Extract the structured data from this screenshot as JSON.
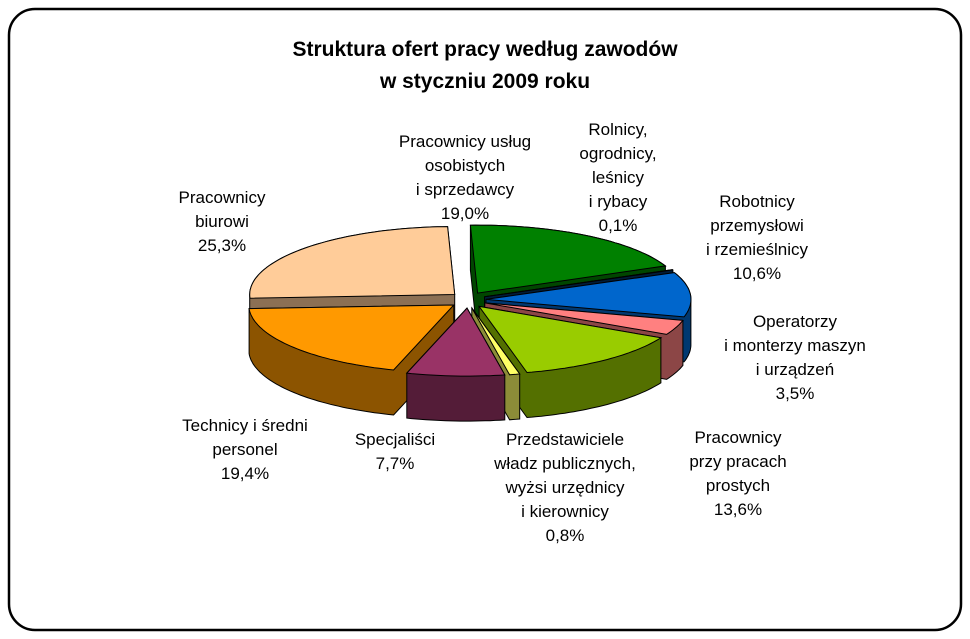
{
  "chart_data": {
    "type": "pie3d",
    "title": "Struktura ofert pracy według zawodów\nw styczniu 2009 roku",
    "categories": [
      "Pracownicy usług\nosobistych\ni sprzedawcy",
      "Rolnicy,\nogrodnicy,\nleśnicy\ni rybacy",
      "Robotnicy\nprzemysłowi\ni rzemieślnicy",
      "Operatorzy\ni monterzy maszyn\ni urządzeń",
      "Pracownicy\nprzy pracach\nprostych",
      "Przedstawiciele\nwładz publicznych,\nwyżsi urzędnicy\ni kierownicy",
      "Specjaliści",
      "Technicy i średni\npersonel",
      "Pracownicy\nbiurowi"
    ],
    "values": [
      19.0,
      0.1,
      10.6,
      3.5,
      13.6,
      0.8,
      7.7,
      19.4,
      25.3
    ],
    "value_labels": [
      "19,0%",
      "0,1%",
      "10,6%",
      "3,5%",
      "13,6%",
      "0,8%",
      "7,7%",
      "19,4%",
      "25,3%"
    ],
    "colors": [
      "#008000",
      "#003366",
      "#0066cc",
      "#ff8080",
      "#99cc00",
      "#ffff66",
      "#993366",
      "#ff9900",
      "#ffcc99"
    ]
  }
}
